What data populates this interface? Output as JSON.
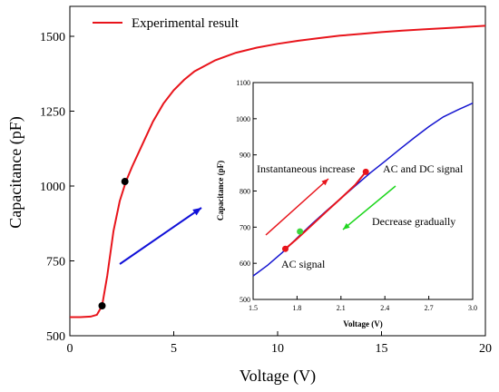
{
  "chart_data": [
    {
      "type": "line",
      "xlabel": "Voltage (V)",
      "ylabel": "Capacitance (pF)",
      "xlim": [
        0,
        20
      ],
      "ylim": [
        500,
        1600
      ],
      "xticks": [
        "0",
        "5",
        "10",
        "15",
        "20"
      ],
      "yticks": [
        "500",
        "750",
        "1000",
        "1250",
        "1500"
      ],
      "legend": {
        "position": "top-left",
        "entries": [
          "Experimental result"
        ]
      },
      "series": [
        {
          "name": "Experimental result",
          "color": "#e8141b",
          "points": [
            [
              0,
              562
            ],
            [
              0.5,
              562
            ],
            [
              1.0,
              564
            ],
            [
              1.3,
              570
            ],
            [
              1.55,
              600
            ],
            [
              1.8,
              700
            ],
            [
              2.1,
              850
            ],
            [
              2.4,
              950
            ],
            [
              2.7,
              1015
            ],
            [
              3.0,
              1065
            ],
            [
              3.5,
              1140
            ],
            [
              4.0,
              1215
            ],
            [
              4.5,
              1275
            ],
            [
              5.0,
              1320
            ],
            [
              5.5,
              1355
            ],
            [
              6.0,
              1383
            ],
            [
              7.0,
              1420
            ],
            [
              8.0,
              1445
            ],
            [
              9.0,
              1462
            ],
            [
              10.0,
              1475
            ],
            [
              11.0,
              1485
            ],
            [
              12.0,
              1494
            ],
            [
              13.0,
              1502
            ],
            [
              14.0,
              1508
            ],
            [
              15.0,
              1514
            ],
            [
              16.0,
              1519
            ],
            [
              17.0,
              1523
            ],
            [
              18.0,
              1527
            ],
            [
              19.0,
              1531
            ],
            [
              20.0,
              1535
            ]
          ]
        }
      ],
      "markers": [
        {
          "x": 1.55,
          "y": 600,
          "color": "#000000"
        },
        {
          "x": 2.65,
          "y": 1015,
          "color": "#000000"
        }
      ]
    },
    {
      "type": "line",
      "xlabel": "Voltage (V)",
      "ylabel": "Capacitance (pF)",
      "xlim": [
        1.5,
        3.0
      ],
      "ylim": [
        500,
        1100
      ],
      "xticks": [
        "1.5",
        "1.8",
        "2.1",
        "2.4",
        "2.7",
        "3.0"
      ],
      "yticks": [
        "500",
        "600",
        "700",
        "800",
        "900",
        "1000",
        "1100"
      ],
      "series": [
        {
          "name": "",
          "color": "#1515d0",
          "points": [
            [
              1.5,
              565
            ],
            [
              1.6,
              595
            ],
            [
              1.7,
              630
            ],
            [
              1.8,
              670
            ],
            [
              1.9,
              708
            ],
            [
              2.0,
              745
            ],
            [
              2.1,
              780
            ],
            [
              2.2,
              815
            ],
            [
              2.3,
              850
            ],
            [
              2.4,
              882
            ],
            [
              2.5,
              915
            ],
            [
              2.6,
              947
            ],
            [
              2.7,
              978
            ],
            [
              2.8,
              1005
            ],
            [
              2.9,
              1025
            ],
            [
              3.0,
              1043
            ]
          ]
        },
        {
          "name": "",
          "color": "#e8141b",
          "points": [
            [
              1.72,
              640
            ],
            [
              1.8,
              668
            ],
            [
              1.9,
              705
            ],
            [
              2.0,
              743
            ],
            [
              2.1,
              780
            ],
            [
              2.2,
              818
            ],
            [
              2.27,
              853
            ]
          ]
        }
      ],
      "markers": [
        {
          "x": 1.72,
          "y": 640,
          "color": "#e8141b"
        },
        {
          "x": 1.82,
          "y": 688,
          "color": "#3ed63e"
        },
        {
          "x": 2.27,
          "y": 853,
          "color": "#e8141b"
        }
      ],
      "annotations": [
        {
          "text": "Instantaneous increase",
          "color": "#000000"
        },
        {
          "text": "AC and DC signal",
          "color": "#000000"
        },
        {
          "text": "Decrease gradually",
          "color": "#000000"
        },
        {
          "text": "AC signal",
          "color": "#000000"
        }
      ],
      "arrows": [
        {
          "color": "#e8141b",
          "direction": "up-right"
        },
        {
          "color": "#1ed61e",
          "direction": "down-left"
        }
      ]
    }
  ],
  "pointer_arrow": {
    "color": "#1010d8",
    "direction": "up-right"
  }
}
